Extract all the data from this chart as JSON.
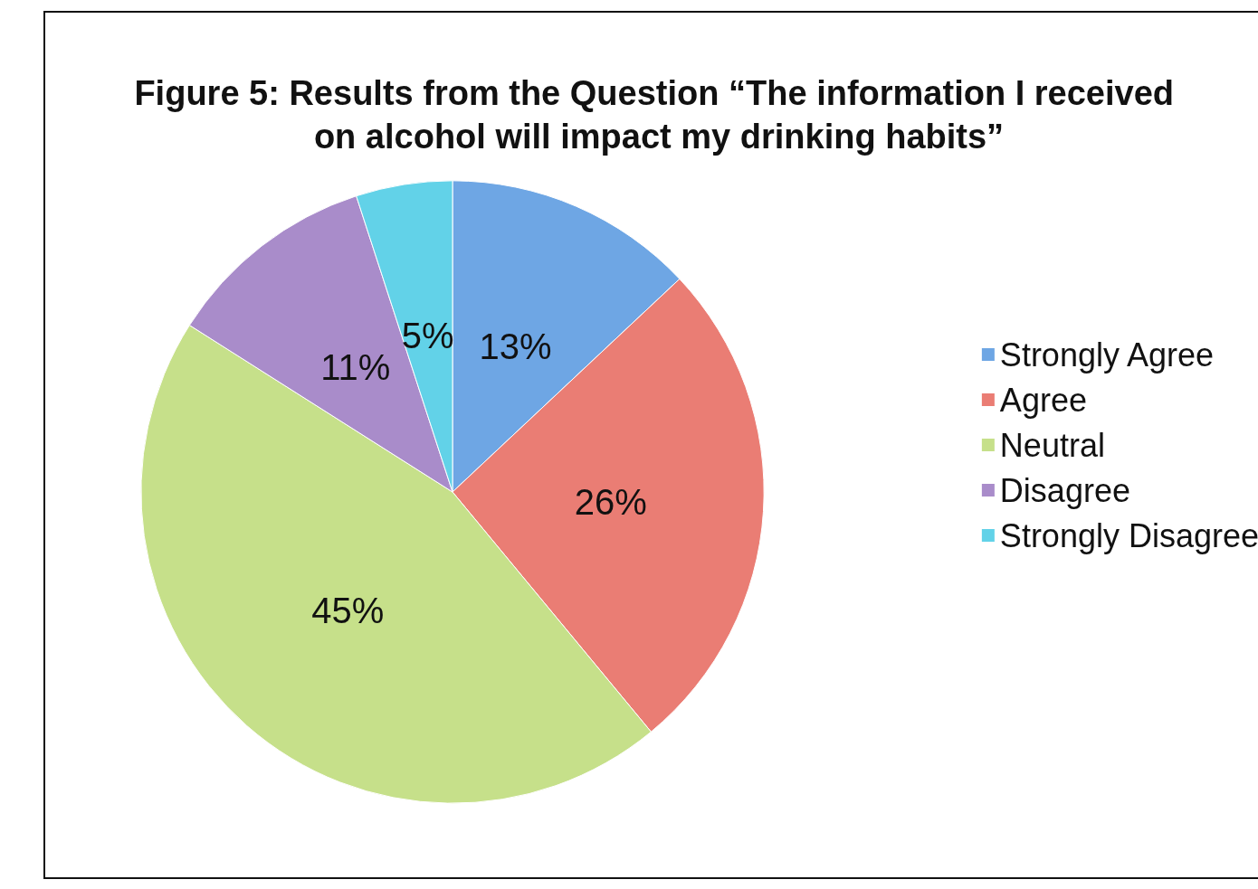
{
  "chart_data": {
    "type": "pie",
    "title": "Figure 5: Results from the Question “The information I received on alcohol will impact my drinking habits”",
    "categories": [
      "Strongly Agree",
      "Agree",
      "Neutral",
      "Disagree",
      "Strongly Disagree"
    ],
    "values": [
      13,
      26,
      45,
      11,
      5
    ],
    "value_labels": [
      "13%",
      "26%",
      "45%",
      "11%",
      "5%"
    ],
    "colors": [
      "#6ea6e4",
      "#ea7d74",
      "#c6e08a",
      "#a98cca",
      "#62d2e8"
    ],
    "legend": "right"
  }
}
